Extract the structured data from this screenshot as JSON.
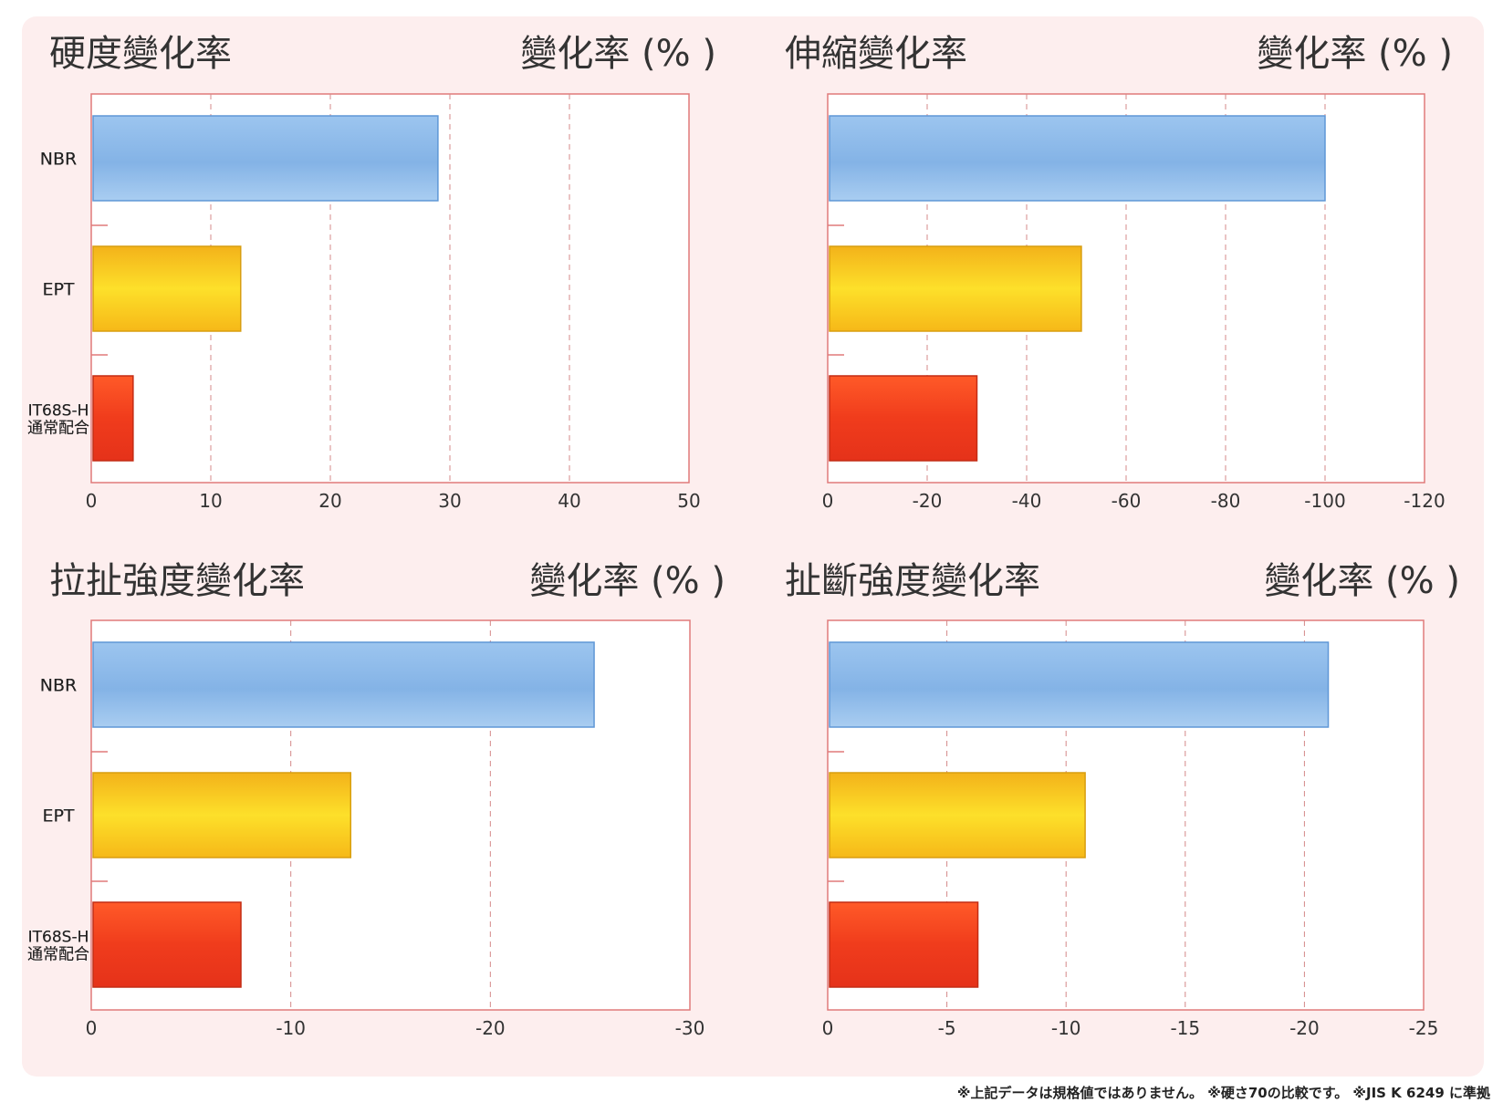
{
  "chart_data": [
    {
      "type": "bar",
      "title": "硬度變化率",
      "unit_label": "變化率 (% )",
      "categories": [
        "NBR",
        "EPT",
        "IT68S-H\n通常配合"
      ],
      "values": [
        29,
        12.5,
        3.5
      ],
      "xlim": [
        0,
        50
      ],
      "ticks": [
        0,
        10,
        20,
        30,
        40,
        50
      ],
      "tick_labels": [
        "0",
        "10",
        "20",
        "30",
        "40",
        "50"
      ],
      "grid": "dashed vertical"
    },
    {
      "type": "bar",
      "title": "伸縮變化率",
      "unit_label": "變化率 (% )",
      "categories": [
        "NBR",
        "EPT",
        "IT68S-H\n通常配合"
      ],
      "values": [
        -100,
        -51,
        -30
      ],
      "xlim": [
        0,
        -120
      ],
      "ticks": [
        0,
        -20,
        -40,
        -60,
        -80,
        -100,
        -120
      ],
      "tick_labels": [
        "0",
        "-20",
        "-40",
        "-60",
        "-80",
        "-100",
        "-120"
      ],
      "grid": "dashed vertical"
    },
    {
      "type": "bar",
      "title": "拉扯強度變化率",
      "unit_label": "變化率 (% )",
      "categories": [
        "NBR",
        "EPT",
        "IT68S-H\n通常配合"
      ],
      "values": [
        -25.2,
        -13,
        -7.5
      ],
      "xlim": [
        0,
        -30
      ],
      "ticks": [
        0,
        -10,
        -20,
        -30
      ],
      "tick_labels": [
        "0",
        "-10",
        "-20",
        "-30"
      ],
      "grid": "dashed vertical"
    },
    {
      "type": "bar",
      "title": "扯斷強度變化率",
      "unit_label": "變化率 (% )",
      "categories": [
        "NBR",
        "EPT",
        "IT68S-H\n通常配合"
      ],
      "values": [
        -21,
        -10.8,
        -6.3
      ],
      "xlim": [
        0,
        -25
      ],
      "ticks": [
        0,
        -5,
        -10,
        -15,
        -20,
        -25
      ],
      "tick_labels": [
        "0",
        "-5",
        "-10",
        "-15",
        "-20",
        "-25"
      ],
      "grid": "dashed vertical"
    }
  ],
  "colors": {
    "NBR": "#8fbbe8",
    "EPT": "#f7c417",
    "IT68S-H": "#f04a1f",
    "frame": "#e07a7a",
    "grid": "#d48888"
  },
  "footnote": "※上記データは規格値ではありません。 ※硬さ70の比較です。 ※JIS K 6249 に準拠"
}
